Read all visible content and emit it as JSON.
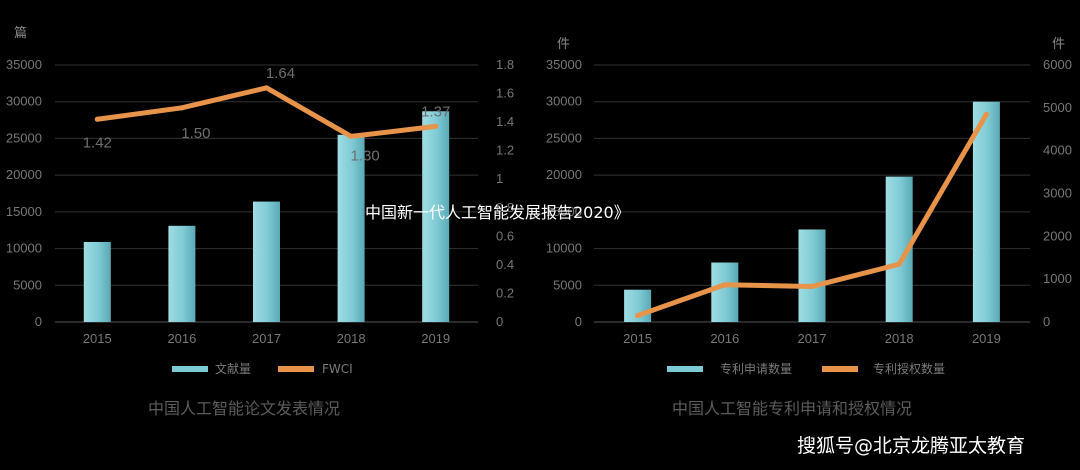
{
  "colors": {
    "bar": "#7ecad4",
    "line": "#e8934a",
    "grid": "#333333",
    "axis": "#555555"
  },
  "overlay_text": "中国新一代人工智能发展报告2020》",
  "watermark": "搜狐号@北京龙腾亚太教育",
  "chart_data": [
    {
      "type": "bar+line",
      "title": "中国人工智能论文发表情况",
      "categories": [
        "2015",
        "2016",
        "2017",
        "2018",
        "2019"
      ],
      "left_unit": "篇",
      "right_unit": "",
      "ylim_left": [
        0,
        35000
      ],
      "ylim_right": [
        0,
        1.8
      ],
      "left_ticks": [
        "0",
        "5000",
        "10000",
        "15000",
        "20000",
        "25000",
        "30000",
        "35000"
      ],
      "right_ticks": [
        "0",
        "0.2",
        "0.4",
        "0.6",
        "0.8",
        "1",
        "1.2",
        "1.4",
        "1.6",
        "1.8"
      ],
      "series": [
        {
          "name": "文献量",
          "kind": "bar",
          "axis": "left",
          "values": [
            10900,
            13100,
            16400,
            25500,
            28700
          ]
        },
        {
          "name": "FWCI",
          "kind": "line",
          "axis": "right",
          "values": [
            1.42,
            1.5,
            1.64,
            1.3,
            1.37
          ],
          "labels": [
            "1.42",
            "1.50",
            "1.64",
            "1.30",
            "1.37"
          ]
        }
      ],
      "grid": true,
      "legend": "bottom"
    },
    {
      "type": "bar+line",
      "title": "中国人工智能专利申请和授权情况",
      "categories": [
        "2015",
        "2016",
        "2017",
        "2018",
        "2019"
      ],
      "left_unit": "件",
      "right_unit": "件",
      "ylim_left": [
        0,
        35000
      ],
      "ylim_right": [
        0,
        6000
      ],
      "left_ticks": [
        "0",
        "5000",
        "10000",
        "15000",
        "20000",
        "25000",
        "30000",
        "35000"
      ],
      "right_ticks": [
        "0",
        "1000",
        "2000",
        "3000",
        "4000",
        "5000",
        "6000"
      ],
      "series": [
        {
          "name": "专利申请数量",
          "kind": "bar",
          "axis": "left",
          "values": [
            4400,
            8100,
            12600,
            19800,
            30000
          ]
        },
        {
          "name": "专利授权数量",
          "kind": "line",
          "axis": "right",
          "values": [
            150,
            870,
            830,
            1350,
            4850
          ]
        }
      ],
      "grid": true,
      "legend": "bottom"
    }
  ]
}
